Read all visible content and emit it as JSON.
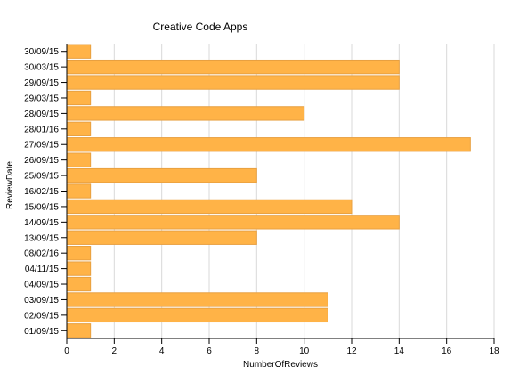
{
  "chart_data": {
    "type": "bar",
    "orientation": "horizontal",
    "title": "Creative Code Apps",
    "xlabel": "NumberOfReviews",
    "ylabel": "ReviewDate",
    "xlim": [
      0,
      18
    ],
    "x_ticks": [
      0,
      2,
      4,
      6,
      8,
      10,
      12,
      14,
      16,
      18
    ],
    "grid": "vertical",
    "bar_color": "#ffb347",
    "bar_stroke": "#e8a040",
    "categories": [
      "30/09/15",
      "30/03/15",
      "29/09/15",
      "29/03/15",
      "28/09/15",
      "28/01/16",
      "27/09/15",
      "26/09/15",
      "25/09/15",
      "16/02/15",
      "15/09/15",
      "14/09/15",
      "13/09/15",
      "08/02/16",
      "04/11/15",
      "04/09/15",
      "03/09/15",
      "02/09/15",
      "01/09/15"
    ],
    "values": [
      1,
      14,
      14,
      1,
      10,
      1,
      17,
      1,
      8,
      1,
      12,
      14,
      8,
      1,
      1,
      1,
      11,
      11,
      1
    ]
  }
}
